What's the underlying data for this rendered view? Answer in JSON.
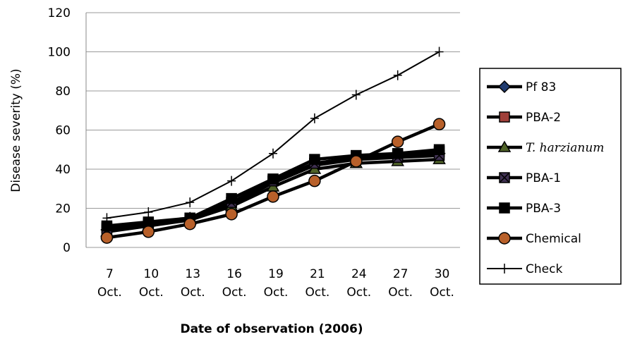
{
  "chart_data": {
    "type": "line",
    "y_label": "Disease severity (%)",
    "x_label": "Date of observation (2006)",
    "categories": [
      "7 Oct.",
      "10 Oct.",
      "13 Oct.",
      "16 Oct.",
      "19 Oct.",
      "21 Oct.",
      "24 Oct.",
      "27 Oct.",
      "30 Oct."
    ],
    "ylim": [
      0,
      120
    ],
    "yticks": [
      0,
      20,
      40,
      60,
      80,
      100,
      120
    ],
    "grid": true,
    "legend": "right",
    "series": [
      {
        "name": "Pf 83",
        "color": "#1f3a6e",
        "marker": "diamond",
        "values": [
          9,
          12,
          15,
          22,
          33,
          42,
          45,
          47,
          48
        ]
      },
      {
        "name": "PBA-2",
        "color": "#a0403a",
        "marker": "square",
        "values": [
          10,
          12,
          15,
          23,
          34,
          43,
          46,
          47,
          49
        ]
      },
      {
        "name": "T. harzianum",
        "color": "#4f6228",
        "marker": "triangle",
        "italic": true,
        "values": [
          8,
          11,
          14,
          21,
          31,
          40,
          43,
          44,
          45
        ]
      },
      {
        "name": "PBA-1",
        "color": "#403152",
        "marker": "xsquare",
        "values": [
          9,
          12,
          14,
          23,
          34,
          43,
          45,
          46,
          47
        ]
      },
      {
        "name": "PBA-3",
        "color": "#000000",
        "marker": "square",
        "values": [
          11,
          13,
          15,
          25,
          35,
          45,
          47,
          48,
          50
        ]
      },
      {
        "name": "Chemical",
        "color": "#b8602a",
        "marker": "circle",
        "values": [
          5,
          8,
          12,
          17,
          26,
          34,
          44,
          54,
          63
        ]
      },
      {
        "name": "Check",
        "color": "#000000",
        "marker": "plus",
        "thin": true,
        "values": [
          15,
          18,
          23,
          34,
          48,
          66,
          78,
          88,
          100
        ]
      }
    ]
  }
}
